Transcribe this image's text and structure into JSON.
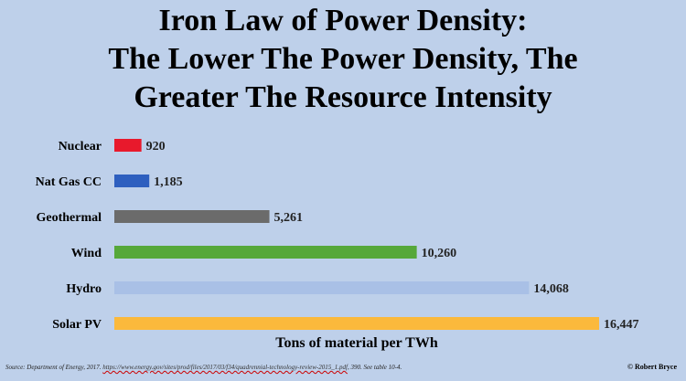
{
  "title": {
    "line1": "Iron Law of Power Density:",
    "line2": "The Lower The Power Density, The",
    "line3": "Greater The Resource Intensity"
  },
  "chart_data": {
    "type": "bar",
    "orientation": "horizontal",
    "title": "Iron Law of Power Density: The Lower The Power Density, The Greater The Resource Intensity",
    "xlabel": "Tons of material per TWh",
    "categories": [
      "Nuclear",
      "Nat Gas CC",
      "Geothermal",
      "Wind",
      "Hydro",
      "Solar PV"
    ],
    "values": [
      920,
      1185,
      5261,
      10260,
      14068,
      16447
    ],
    "value_labels": [
      "920",
      "1,185",
      "5,261",
      "10,260",
      "14,068",
      "16,447"
    ],
    "colors": [
      "#e8192c",
      "#2e5fbf",
      "#6b6b6b",
      "#56a83a",
      "#a9c0e6",
      "#fbb93c"
    ],
    "xlim": [
      0,
      16447
    ],
    "grid": false,
    "legend": "none"
  },
  "source": {
    "prefix": "Source: Department of Energy, 2017. ",
    "url": "https://www.energy.gov/sites/prod/files/2017/03/f34/quadrennial-technology-review-2015_1.pdf",
    "suffix": ", 390. See table 10-4."
  },
  "copyright": "© Robert Bryce"
}
